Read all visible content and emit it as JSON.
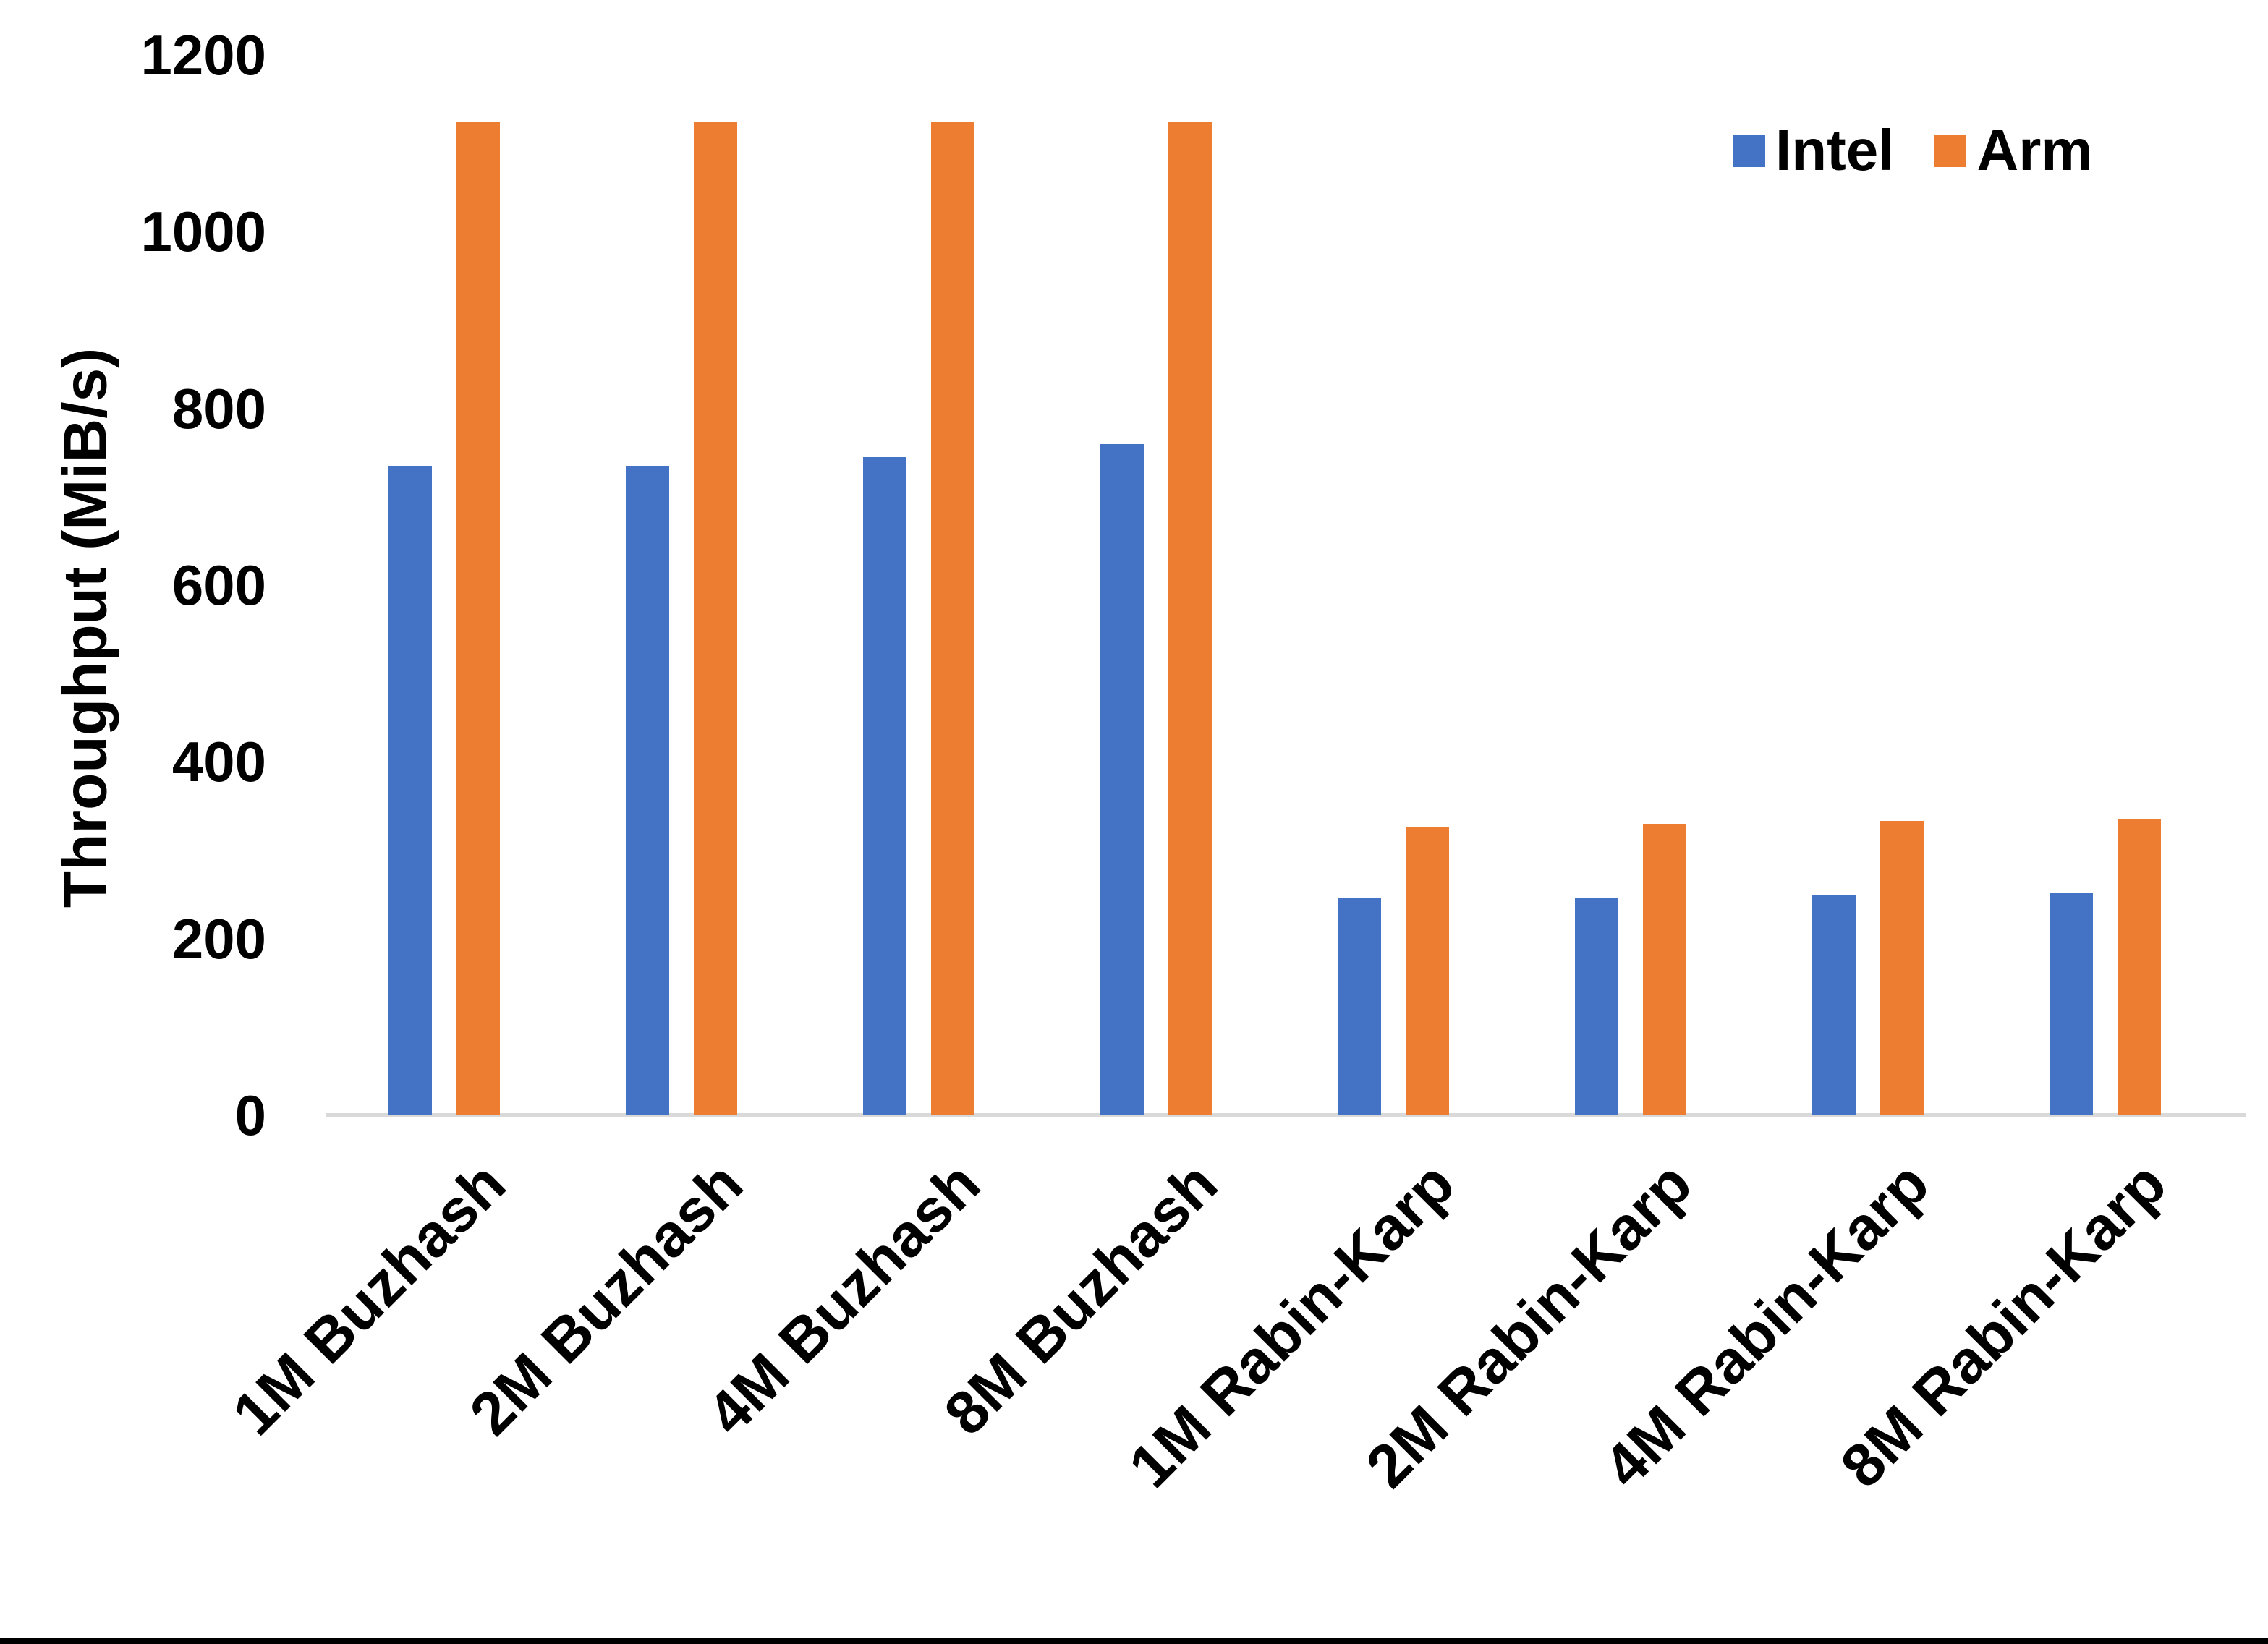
{
  "chart_data": {
    "type": "bar",
    "title": "",
    "xlabel": "",
    "ylabel": "Throughput (MiB/s)",
    "ylim": [
      0,
      1200
    ],
    "yticks": [
      0,
      200,
      400,
      600,
      800,
      1000,
      1200
    ],
    "grid": "off",
    "legend_position": "top-right",
    "categories": [
      "1M Buzhash",
      "2M Buzhash",
      "4M Buzhash",
      "8M Buzhash",
      "1M Rabin-Karp",
      "2M Rabin-Karp",
      "4M Rabin-Karp",
      "8M Rabin-Karp"
    ],
    "series": [
      {
        "name": "Intel",
        "color": "#4472C4",
        "values": [
          735,
          735,
          745,
          760,
          246,
          246,
          250,
          252
        ]
      },
      {
        "name": "Arm",
        "color": "#ED7D31",
        "values": [
          1125,
          1125,
          1125,
          1125,
          327,
          330,
          333,
          336
        ]
      }
    ]
  },
  "colors": {
    "axis_line": "#D9D9D9",
    "text": "#000000",
    "background": "#FFFFFF",
    "bottom_border": "#000000"
  }
}
